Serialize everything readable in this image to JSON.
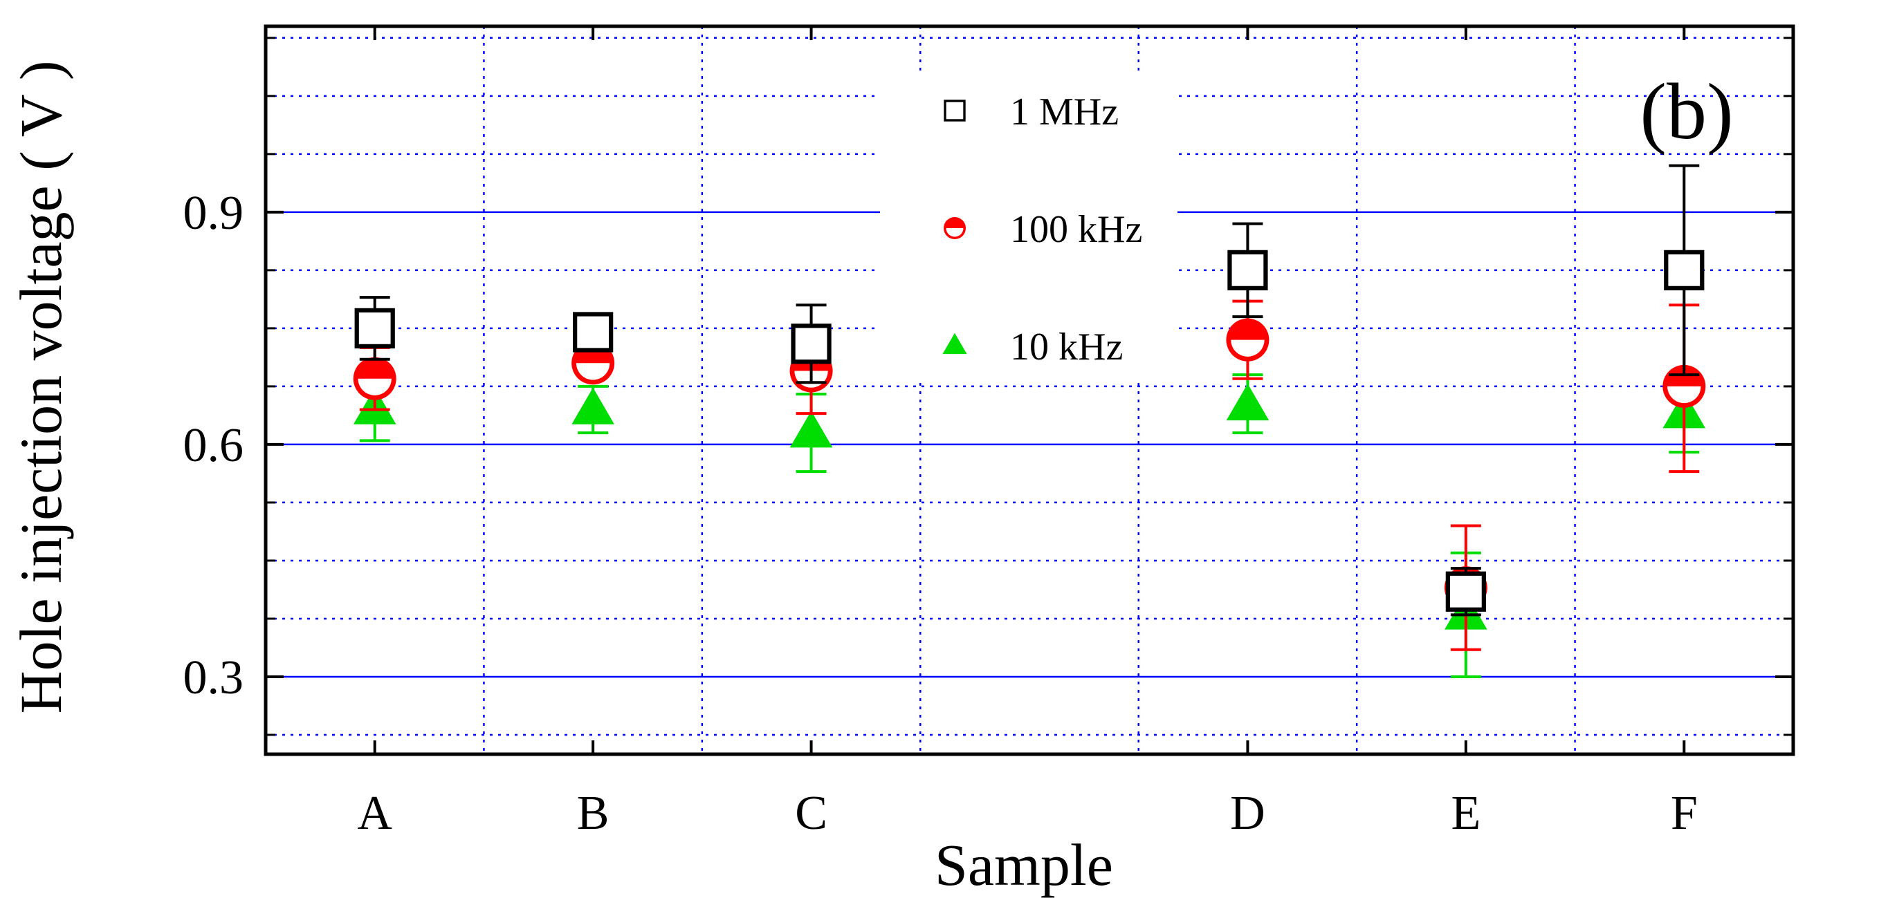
{
  "chart_data": {
    "type": "scatter",
    "xlabel": "Sample",
    "ylabel": "Hole injection voltage ( V )",
    "categories": [
      "A",
      "B",
      "C",
      "D",
      "E",
      "F"
    ],
    "category_positions": [
      1,
      2,
      3,
      5,
      6,
      7
    ],
    "xlim": [
      0.5,
      7.5
    ],
    "ylim": [
      0.2,
      1.14
    ],
    "y_ticks": [
      0.3,
      0.6,
      0.9
    ],
    "y_tick_labels": [
      "0.3",
      "0.6",
      "0.9"
    ],
    "y_minor_ticks": [
      0.225,
      0.375,
      0.45,
      0.525,
      0.675,
      0.75,
      0.825,
      0.975,
      1.05,
      1.125
    ],
    "grid": true,
    "legend_position": "top-center",
    "annotation": "(b)",
    "colors": {
      "series_1mhz": "#000000",
      "series_100khz": "#ff0000",
      "series_10khz": "#00dd00",
      "major_grid": "#0000ff",
      "minor_grid": "#0000ff"
    },
    "series": [
      {
        "name": "1 MHz",
        "marker": "open-square",
        "color": "#000000",
        "values": [
          0.75,
          0.745,
          0.73,
          0.825,
          0.41,
          0.825
        ],
        "error_upper": [
          0.79,
          0.765,
          0.78,
          0.885,
          0.44,
          0.96
        ],
        "error_lower": [
          0.71,
          0.725,
          0.68,
          0.765,
          0.38,
          0.69
        ]
      },
      {
        "name": "100 kHz",
        "marker": "half-filled-circle",
        "color": "#ff0000",
        "values": [
          0.685,
          0.705,
          0.695,
          0.735,
          0.415,
          0.675
        ],
        "error_upper": [
          0.725,
          0.715,
          0.725,
          0.785,
          0.495,
          0.78
        ],
        "error_lower": [
          0.645,
          0.695,
          0.64,
          0.685,
          0.335,
          0.565
        ]
      },
      {
        "name": "10 kHz",
        "marker": "filled-triangle",
        "color": "#00dd00",
        "values": [
          0.645,
          0.645,
          0.615,
          0.65,
          0.38,
          0.64
        ],
        "error_upper": [
          0.685,
          0.675,
          0.665,
          0.69,
          0.46,
          0.69
        ],
        "error_lower": [
          0.605,
          0.615,
          0.565,
          0.615,
          0.3,
          0.59
        ]
      }
    ]
  }
}
